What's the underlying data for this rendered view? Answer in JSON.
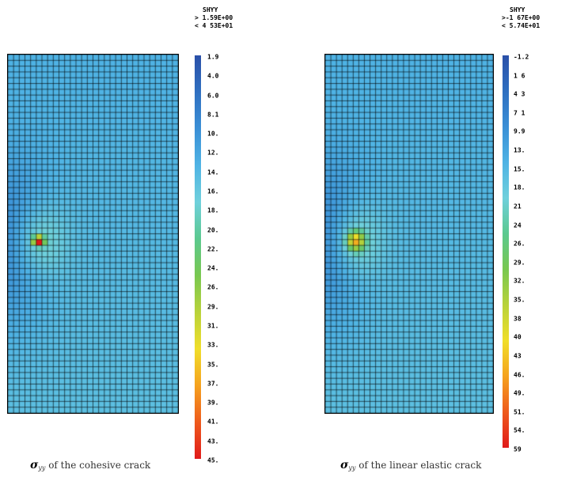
{
  "panels": [
    {
      "id": "cohesive",
      "legend": {
        "title": "SHYY",
        "max_line": "> 1.59E+00",
        "min_line": "< 4 53E+01",
        "ticks": [
          "1.9",
          "4.0",
          "6.0",
          "8.1",
          "10.",
          "12.",
          "14.",
          "16.",
          "18.",
          "20.",
          "22.",
          "24.",
          "26.",
          "29.",
          "31.",
          "33.",
          "35.",
          "37.",
          "39.",
          "41.",
          "43.",
          "45."
        ]
      },
      "caption": {
        "symbol": "σ",
        "subscript": "yy",
        "text": " of the cohesive crack"
      },
      "mesh": {
        "cols": 30,
        "rows": 62,
        "field": "cohesive"
      }
    },
    {
      "id": "linear",
      "legend": {
        "title": "SHYY",
        "max_line": ">-1 67E+00",
        "min_line": "< 5.74E+01",
        "ticks": [
          "-1.2",
          "1 6",
          "4 3",
          "7 1",
          "9.9",
          "13.",
          "15.",
          "18.",
          "21",
          "24",
          "26.",
          "29.",
          "32.",
          "35.",
          "38",
          "40",
          "43",
          "46.",
          "49.",
          "51.",
          "54.",
          "59"
        ]
      },
      "caption": {
        "symbol": "σ",
        "subscript": "yy",
        "text": " of the linear elastic crack"
      },
      "mesh": {
        "cols": 30,
        "rows": 62,
        "field": "linear"
      }
    }
  ],
  "colors": {
    "mesh_line": "#000000",
    "scale": [
      "#2a50a8",
      "#2f6fc0",
      "#3a8fd6",
      "#4fb3e4",
      "#6fd0dc",
      "#5bc98f",
      "#78c850",
      "#b8d23a",
      "#f0de2a",
      "#f5a21e",
      "#ee5a1c",
      "#e01a1a"
    ]
  }
}
